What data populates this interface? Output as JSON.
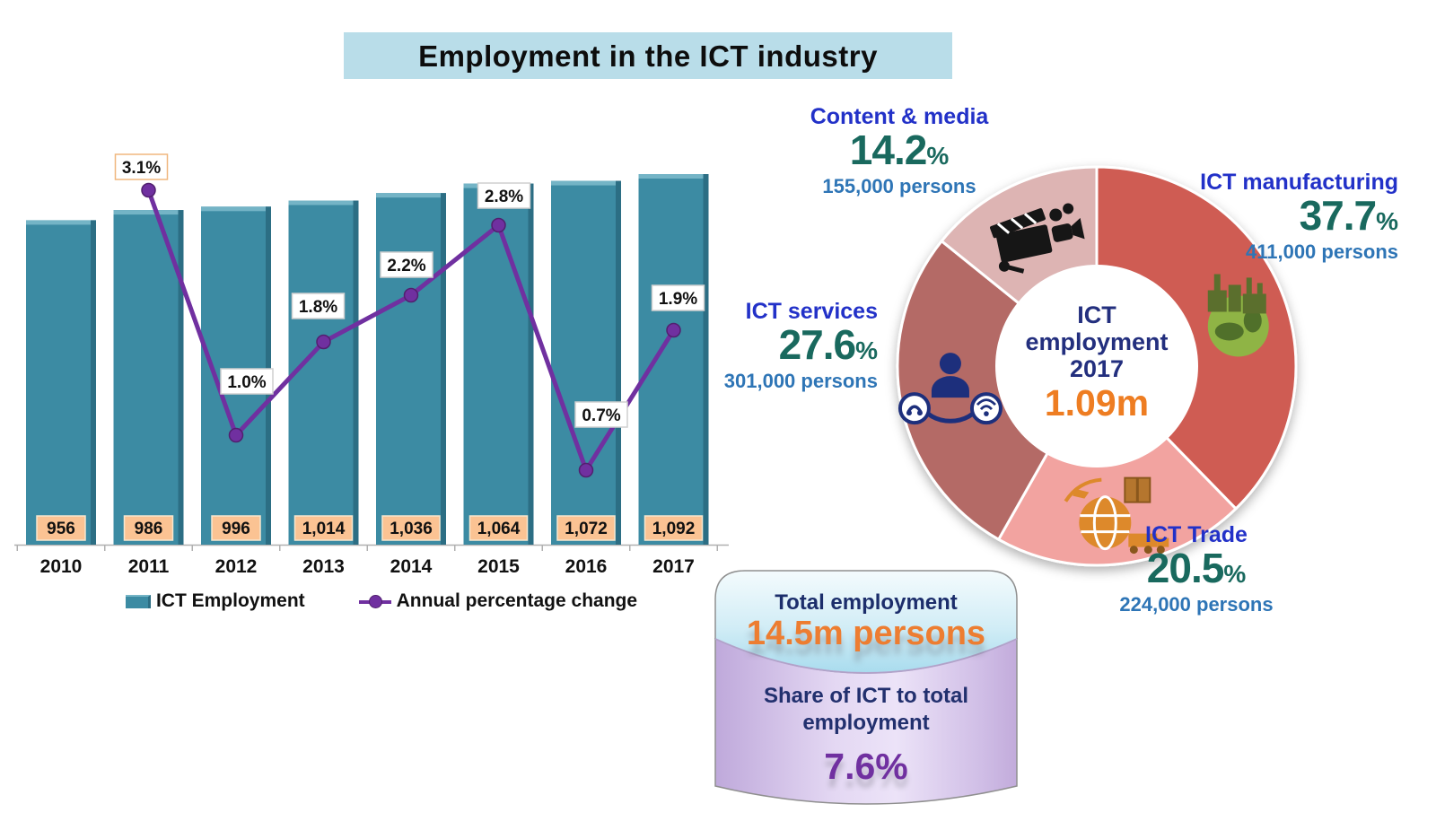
{
  "title": "Employment in the ICT industry",
  "percent_sign": "%",
  "colors": {
    "title_bg": "#b9dde9",
    "bar": "#3c8ba3",
    "bar_light": "#74b4c6",
    "bar_dark": "#2c6e84",
    "line": "#7030a0",
    "value_box_bg": "#fbc393",
    "axis": "#b0b0b0",
    "category_label": "#2231c8",
    "percent_text": "#19695e",
    "persons_text": "#2e75b6",
    "center_navy": "#232f7e",
    "orange": "#ee7d22",
    "share_purple": "#7030a0"
  },
  "chart_data": [
    {
      "type": "bar+line",
      "title": "ICT employment by year",
      "categories": [
        "2010",
        "2011",
        "2012",
        "2013",
        "2014",
        "2015",
        "2016",
        "2017"
      ],
      "series": [
        {
          "name": "ICT Employment",
          "type": "bar",
          "unit": "thousand persons",
          "values": [
            956,
            986,
            996,
            1014,
            1036,
            1064,
            1072,
            1092
          ],
          "labels": [
            "956",
            "986",
            "996",
            "1,014",
            "1,036",
            "1,064",
            "1,072",
            "1,092"
          ],
          "color": "#3c8ba3"
        },
        {
          "name": "Annual percentage change",
          "type": "line",
          "unit": "percent",
          "categories": [
            "2011",
            "2012",
            "2013",
            "2014",
            "2015",
            "2016",
            "2017"
          ],
          "values": [
            3.1,
            1.0,
            1.8,
            2.2,
            2.8,
            0.7,
            1.9
          ],
          "labels": [
            "3.1%",
            "1.0%",
            "1.8%",
            "2.2%",
            "2.8%",
            "0.7%",
            "1.9%"
          ],
          "color": "#7030a0"
        }
      ],
      "legend_position": "bottom",
      "y_axis_labels_visible": false,
      "baseline": 0
    },
    {
      "type": "donut",
      "title": "ICT employment 2017 by sector",
      "center": {
        "line1": "ICT",
        "line2": "employment",
        "line3": "2017",
        "value": "1.09m"
      },
      "start_angle_deg": 0,
      "direction": "clockwise",
      "segments": [
        {
          "label": "ICT manufacturing",
          "pct": 37.7,
          "pct_text": "37.7",
          "persons": "411,000 persons",
          "color": "#cf5b53",
          "icon": "factory-globe-icon"
        },
        {
          "label": "ICT Trade",
          "pct": 20.5,
          "pct_text": "20.5",
          "persons": "224,000 persons",
          "color": "#f2a3a0",
          "icon": "globe-logistics-icon"
        },
        {
          "label": "ICT services",
          "pct": 27.6,
          "pct_text": "27.6",
          "persons": "301,000 persons",
          "color": "#b46a66",
          "icon": "person-communications-icon"
        },
        {
          "label": "Content & media",
          "pct": 14.2,
          "pct_text": "14.2",
          "persons": "155,000 persons",
          "color": "#ddb4b3",
          "icon": "media-production-icon"
        }
      ]
    }
  ],
  "cylinder": {
    "total_label": "Total employment",
    "total_value": "14.5m persons",
    "share_label": "Share of ICT to total employment",
    "share_value": "7.6%"
  }
}
